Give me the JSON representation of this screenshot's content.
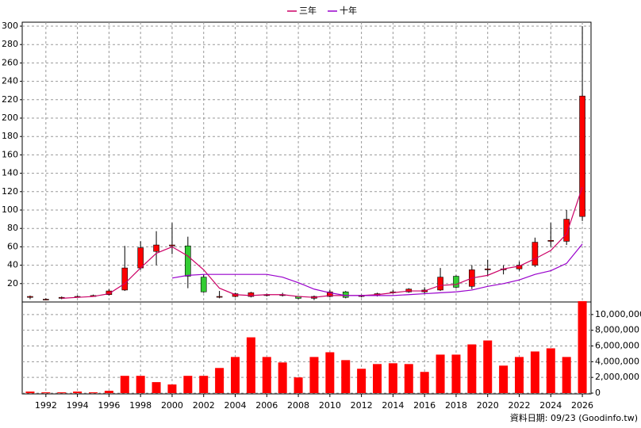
{
  "chart_data": [
    {
      "type": "candlestick",
      "x": [
        1991,
        1992,
        1993,
        1994,
        1995,
        1996,
        1997,
        1998,
        1999,
        2000,
        2001,
        2002,
        2003,
        2004,
        2005,
        2006,
        2007,
        2008,
        2009,
        2010,
        2011,
        2012,
        2013,
        2014,
        2015,
        2016,
        2017,
        2018,
        2019,
        2020,
        2021,
        2022,
        2023,
        2024,
        2025,
        2026
      ],
      "open": [
        5,
        3,
        4,
        5,
        6,
        8,
        13,
        37,
        55,
        61,
        61,
        27,
        6,
        6,
        6,
        7,
        7,
        6,
        4,
        6,
        11,
        6,
        7,
        11,
        11,
        11,
        13,
        28,
        17,
        35,
        35,
        36,
        40,
        66,
        66,
        93
      ],
      "high": [
        7,
        4,
        6,
        7,
        8,
        14,
        61,
        66,
        77,
        86,
        71,
        30,
        12,
        10,
        11,
        9,
        10,
        6,
        7,
        13,
        12,
        8,
        10,
        13,
        15,
        16,
        37,
        29,
        40,
        46,
        40,
        44,
        70,
        86,
        100,
        300
      ],
      "low": [
        3,
        2,
        3,
        5,
        6,
        7,
        12,
        35,
        40,
        52,
        15,
        10,
        4,
        5,
        5,
        6,
        6,
        3,
        2,
        5,
        4,
        5,
        6,
        9,
        10,
        9,
        12,
        15,
        14,
        28,
        30,
        34,
        38,
        60,
        62,
        88
      ],
      "close": [
        6,
        3,
        5,
        6,
        7,
        12,
        37,
        59,
        62,
        62,
        28,
        11,
        6,
        9,
        10,
        8,
        8,
        4,
        6,
        11,
        5,
        7,
        9,
        11,
        14,
        13,
        27,
        16,
        35,
        36,
        36,
        40,
        65,
        67,
        90,
        224
      ],
      "up_color": "#ff0000",
      "down_color": "#33cc33",
      "wick_color": "#000000",
      "series": [
        {
          "name": "三年",
          "color": "#cc0066",
          "values": [
            null,
            null,
            4,
            5,
            6,
            9,
            20,
            37,
            53,
            60,
            50,
            35,
            15,
            8,
            7,
            8,
            8,
            6,
            5,
            7,
            7,
            7,
            8,
            10,
            12,
            12,
            18,
            19,
            26,
            29,
            36,
            39,
            47,
            56,
            74,
            125
          ]
        },
        {
          "name": "十年",
          "color": "#9900cc",
          "values": [
            null,
            null,
            null,
            null,
            null,
            null,
            null,
            null,
            null,
            26,
            29,
            30,
            30,
            30,
            30,
            30,
            27,
            21,
            14,
            10,
            7,
            7,
            7,
            7,
            8,
            9,
            10,
            11,
            13,
            17,
            20,
            24,
            30,
            34,
            42,
            63
          ]
        }
      ],
      "xlim": [
        1990.5,
        2026.55
      ],
      "ylim": [
        0,
        300
      ],
      "yticks": [
        20,
        40,
        60,
        80,
        100,
        120,
        140,
        160,
        180,
        200,
        220,
        240,
        260,
        280,
        300
      ],
      "grid": true
    },
    {
      "type": "bar",
      "x": [
        1991,
        1992,
        1993,
        1994,
        1995,
        1996,
        1997,
        1998,
        1999,
        2000,
        2001,
        2002,
        2003,
        2004,
        2005,
        2006,
        2007,
        2008,
        2009,
        2010,
        2011,
        2012,
        2013,
        2014,
        2015,
        2016,
        2017,
        2018,
        2019,
        2020,
        2021,
        2022,
        2023,
        2024,
        2025,
        2026
      ],
      "values": [
        200000,
        100000,
        100000,
        200000,
        100000,
        300000,
        2200000,
        2200000,
        1400000,
        1100000,
        2200000,
        2200000,
        3200000,
        4600000,
        7100000,
        4600000,
        3900000,
        2000000,
        4600000,
        5200000,
        4200000,
        3100000,
        3700000,
        3800000,
        3700000,
        2700000,
        4900000,
        4900000,
        6200000,
        6700000,
        3500000,
        4600000,
        5300000,
        5700000,
        4600000,
        11700000
      ],
      "color": "#ff0000",
      "xlim": [
        1990.5,
        2026.55
      ],
      "xticks": [
        1992,
        1994,
        1996,
        1998,
        2000,
        2002,
        2004,
        2006,
        2008,
        2010,
        2012,
        2014,
        2016,
        2018,
        2020,
        2022,
        2024,
        2026
      ],
      "ylim": [
        0,
        11700000
      ],
      "yticks": [
        {
          "value": 0,
          "label": "0"
        },
        {
          "value": 2000000,
          "label": "2,000,000"
        },
        {
          "value": 4000000,
          "label": "4,000,000"
        },
        {
          "value": 6000000,
          "label": "6,000,000"
        },
        {
          "value": 8000000,
          "label": "8,000,000"
        },
        {
          "value": 10000000,
          "label": "10,000,000"
        }
      ],
      "grid": true
    }
  ],
  "footer": "資料日期: 09/23 (Goodinfo.tw)"
}
